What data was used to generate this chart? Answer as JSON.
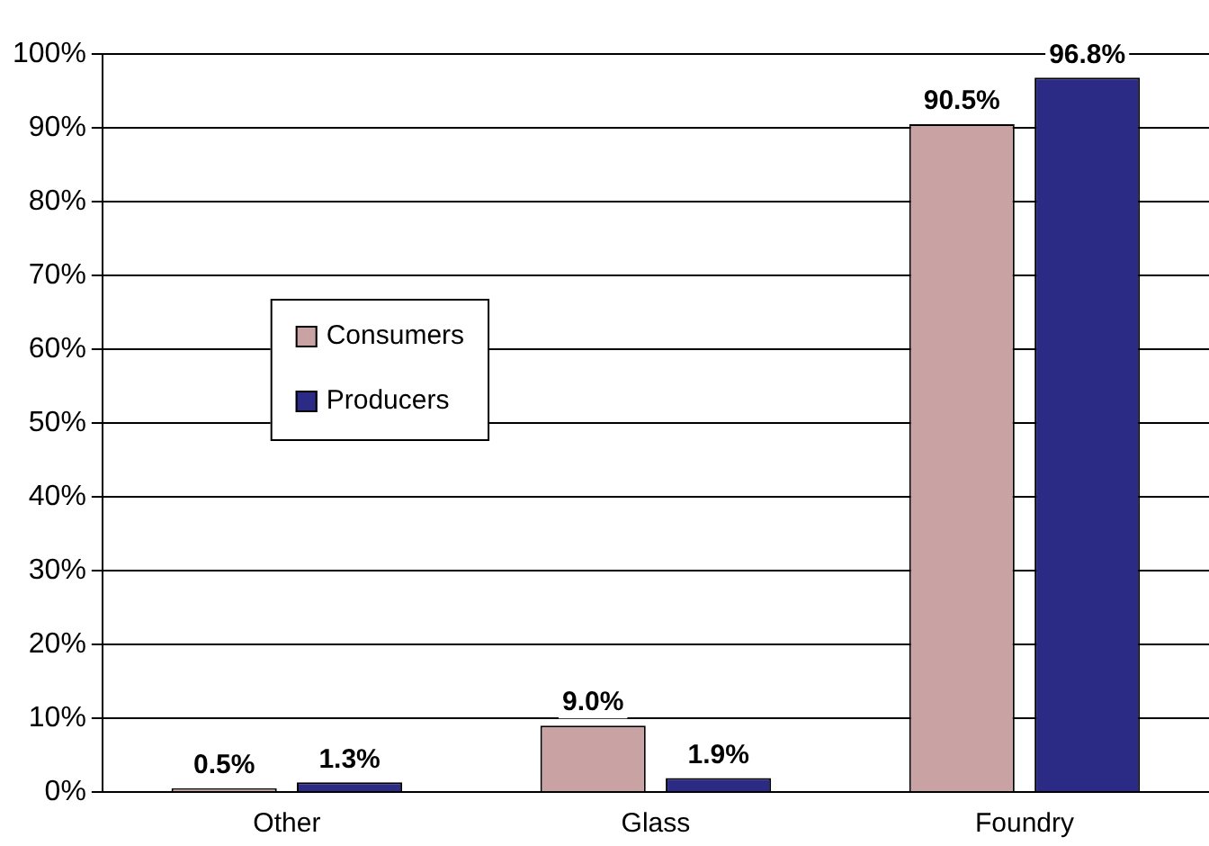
{
  "chart_data": {
    "type": "bar",
    "categories": [
      "Other",
      "Glass",
      "Foundry"
    ],
    "series": [
      {
        "name": "Consumers",
        "color": "#c9a3a3",
        "values": [
          0.5,
          9.0,
          90.5
        ],
        "value_labels": [
          "0.5%",
          "9.0%",
          "90.5%"
        ]
      },
      {
        "name": "Producers",
        "color": "#2b2b85",
        "values": [
          1.3,
          1.9,
          96.8
        ],
        "value_labels": [
          "1.3%",
          "1.9%",
          "96.8%"
        ]
      }
    ],
    "ylim": [
      0,
      100
    ],
    "yticks": [
      {
        "value": 0,
        "label": "0%"
      },
      {
        "value": 10,
        "label": "10%"
      },
      {
        "value": 20,
        "label": "20%"
      },
      {
        "value": 30,
        "label": "30%"
      },
      {
        "value": 40,
        "label": "40%"
      },
      {
        "value": 50,
        "label": "50%"
      },
      {
        "value": 60,
        "label": "60%"
      },
      {
        "value": 70,
        "label": "70%"
      },
      {
        "value": 80,
        "label": "80%"
      },
      {
        "value": 90,
        "label": "90%"
      },
      {
        "value": 100,
        "label": "100%"
      }
    ],
    "grid": "y",
    "legend": "left"
  }
}
